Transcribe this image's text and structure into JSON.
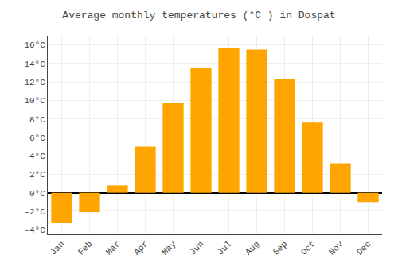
{
  "chart_data": {
    "type": "bar",
    "title": "Average monthly temperatures (°C ) in Dospat",
    "categories": [
      "Jan",
      "Feb",
      "Mar",
      "Apr",
      "May",
      "Jun",
      "Jul",
      "Aug",
      "Sep",
      "Oct",
      "Nov",
      "Dec"
    ],
    "values": [
      -3.3,
      -2.1,
      0.8,
      5.0,
      9.7,
      13.5,
      15.7,
      15.5,
      12.3,
      7.6,
      3.2,
      -1.0
    ],
    "color": "#FFA500",
    "ylim": [
      -4.5,
      17
    ],
    "yticks": [
      {
        "value": -4,
        "label": "-4°C"
      },
      {
        "value": -2,
        "label": "-2°C"
      },
      {
        "value": 0,
        "label": "0°C"
      },
      {
        "value": 2,
        "label": "2°C"
      },
      {
        "value": 4,
        "label": "4°C"
      },
      {
        "value": 6,
        "label": "6°C"
      },
      {
        "value": 8,
        "label": "8°C"
      },
      {
        "value": 10,
        "label": "10°C"
      },
      {
        "value": 12,
        "label": "12°C"
      },
      {
        "value": 14,
        "label": "14°C"
      },
      {
        "value": 16,
        "label": "16°C"
      }
    ],
    "grid": true
  }
}
